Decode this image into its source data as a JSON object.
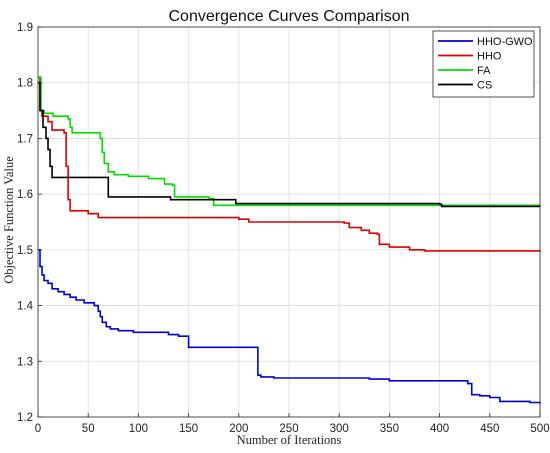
{
  "chart_data": {
    "type": "line",
    "title": "Convergence Curves Comparison",
    "xlabel": "Number of Iterations",
    "ylabel": "Objective Function Value",
    "xlim": [
      0,
      500
    ],
    "ylim": [
      1.2,
      1.9
    ],
    "xticks": [
      "0",
      "50",
      "100",
      "150",
      "200",
      "250",
      "300",
      "350",
      "400",
      "450",
      "500"
    ],
    "yticks": [
      "1.2",
      "1.3",
      "1.4",
      "1.5",
      "1.6",
      "1.7",
      "1.8",
      "1.9"
    ],
    "grid": true,
    "legend_position": "top-right",
    "series": [
      {
        "name": "HHO-GWO",
        "color": "#0000dd",
        "points": [
          [
            0,
            1.5
          ],
          [
            2,
            1.47
          ],
          [
            4,
            1.455
          ],
          [
            6,
            1.445
          ],
          [
            10,
            1.44
          ],
          [
            14,
            1.43
          ],
          [
            20,
            1.425
          ],
          [
            26,
            1.42
          ],
          [
            32,
            1.415
          ],
          [
            38,
            1.41
          ],
          [
            46,
            1.405
          ],
          [
            56,
            1.4
          ],
          [
            60,
            1.39
          ],
          [
            62,
            1.38
          ],
          [
            64,
            1.37
          ],
          [
            68,
            1.362
          ],
          [
            72,
            1.358
          ],
          [
            80,
            1.355
          ],
          [
            95,
            1.352
          ],
          [
            130,
            1.348
          ],
          [
            140,
            1.345
          ],
          [
            150,
            1.325
          ],
          [
            217,
            1.325
          ],
          [
            219,
            1.275
          ],
          [
            222,
            1.272
          ],
          [
            235,
            1.27
          ],
          [
            330,
            1.268
          ],
          [
            350,
            1.265
          ],
          [
            420,
            1.265
          ],
          [
            428,
            1.26
          ],
          [
            432,
            1.24
          ],
          [
            440,
            1.238
          ],
          [
            450,
            1.235
          ],
          [
            460,
            1.228
          ],
          [
            490,
            1.226
          ],
          [
            500,
            1.224
          ]
        ]
      },
      {
        "name": "HHO",
        "color": "#dd0000",
        "points": [
          [
            0,
            1.81
          ],
          [
            2,
            1.75
          ],
          [
            4,
            1.74
          ],
          [
            10,
            1.73
          ],
          [
            14,
            1.715
          ],
          [
            26,
            1.71
          ],
          [
            28,
            1.65
          ],
          [
            30,
            1.59
          ],
          [
            32,
            1.57
          ],
          [
            50,
            1.565
          ],
          [
            60,
            1.558
          ],
          [
            200,
            1.555
          ],
          [
            210,
            1.55
          ],
          [
            305,
            1.548
          ],
          [
            310,
            1.54
          ],
          [
            322,
            1.535
          ],
          [
            330,
            1.53
          ],
          [
            338,
            1.528
          ],
          [
            340,
            1.51
          ],
          [
            350,
            1.505
          ],
          [
            370,
            1.5
          ],
          [
            385,
            1.498
          ],
          [
            500,
            1.497
          ]
        ]
      },
      {
        "name": "FA",
        "color": "#00dd00",
        "points": [
          [
            0,
            1.81
          ],
          [
            3,
            1.75
          ],
          [
            6,
            1.745
          ],
          [
            15,
            1.74
          ],
          [
            25,
            1.74
          ],
          [
            30,
            1.735
          ],
          [
            32,
            1.72
          ],
          [
            34,
            1.71
          ],
          [
            60,
            1.71
          ],
          [
            62,
            1.7
          ],
          [
            64,
            1.675
          ],
          [
            66,
            1.655
          ],
          [
            70,
            1.64
          ],
          [
            76,
            1.635
          ],
          [
            90,
            1.632
          ],
          [
            110,
            1.628
          ],
          [
            126,
            1.618
          ],
          [
            134,
            1.616
          ],
          [
            136,
            1.595
          ],
          [
            170,
            1.592
          ],
          [
            175,
            1.58
          ],
          [
            500,
            1.578
          ]
        ]
      },
      {
        "name": "CS",
        "color": "#000000",
        "points": [
          [
            0,
            1.8
          ],
          [
            2,
            1.75
          ],
          [
            5,
            1.72
          ],
          [
            8,
            1.7
          ],
          [
            10,
            1.68
          ],
          [
            12,
            1.65
          ],
          [
            14,
            1.63
          ],
          [
            68,
            1.63
          ],
          [
            70,
            1.595
          ],
          [
            128,
            1.595
          ],
          [
            132,
            1.59
          ],
          [
            195,
            1.59
          ],
          [
            197,
            1.583
          ],
          [
            400,
            1.582
          ],
          [
            402,
            1.578
          ],
          [
            500,
            1.578
          ]
        ]
      }
    ]
  }
}
